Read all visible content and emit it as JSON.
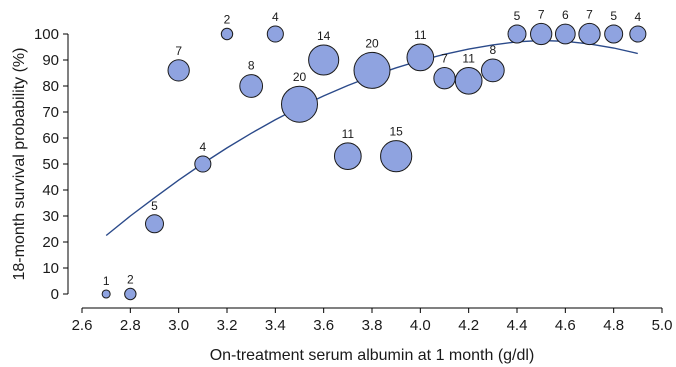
{
  "chart_data": {
    "type": "scatter",
    "title": "",
    "xlabel": "On-treatment serum albumin at 1 month (g/dl)",
    "ylabel": "18-month survival probability (%)",
    "xlim": [
      2.6,
      5.0
    ],
    "ylim": [
      0,
      100
    ],
    "xticks": [
      2.6,
      2.8,
      3.0,
      3.2,
      3.4,
      3.6,
      3.8,
      4.0,
      4.2,
      4.4,
      4.6,
      4.8,
      5.0
    ],
    "xtick_labels": [
      "2.6",
      "2.8",
      "3.0",
      "3.2",
      "3.4",
      "3.6",
      "3.8",
      "4.0",
      "4.2",
      "4.4",
      "4.6",
      "4.8",
      "5.0"
    ],
    "yticks": [
      0,
      10,
      20,
      30,
      40,
      50,
      60,
      70,
      80,
      90,
      100
    ],
    "ytick_labels": [
      "0",
      "10",
      "20",
      "30",
      "40",
      "50",
      "60",
      "70",
      "80",
      "90",
      "100"
    ],
    "grid": false,
    "bubble_color": "#8fa3e0",
    "bubble_edge": "#1a1a1a",
    "curve_color": "#2b4a8a",
    "points": [
      {
        "x": 2.7,
        "y": 0,
        "n": 1
      },
      {
        "x": 2.8,
        "y": 0,
        "n": 2
      },
      {
        "x": 2.9,
        "y": 27,
        "n": 5
      },
      {
        "x": 3.0,
        "y": 86,
        "n": 7
      },
      {
        "x": 3.1,
        "y": 50,
        "n": 4
      },
      {
        "x": 3.2,
        "y": 100,
        "n": 2
      },
      {
        "x": 3.3,
        "y": 80,
        "n": 8
      },
      {
        "x": 3.4,
        "y": 100,
        "n": 4
      },
      {
        "x": 3.5,
        "y": 73,
        "n": 20
      },
      {
        "x": 3.6,
        "y": 90,
        "n": 14
      },
      {
        "x": 3.7,
        "y": 53,
        "n": 11
      },
      {
        "x": 3.8,
        "y": 86,
        "n": 20
      },
      {
        "x": 3.9,
        "y": 53,
        "n": 15
      },
      {
        "x": 4.0,
        "y": 91,
        "n": 11
      },
      {
        "x": 4.1,
        "y": 83,
        "n": 7
      },
      {
        "x": 4.2,
        "y": 82,
        "n": 11
      },
      {
        "x": 4.3,
        "y": 86,
        "n": 8
      },
      {
        "x": 4.4,
        "y": 100,
        "n": 5
      },
      {
        "x": 4.5,
        "y": 100,
        "n": 7
      },
      {
        "x": 4.6,
        "y": 100,
        "n": 6
      },
      {
        "x": 4.7,
        "y": 100,
        "n": 7
      },
      {
        "x": 4.8,
        "y": 100,
        "n": 5
      },
      {
        "x": 4.9,
        "y": 100,
        "n": 4
      }
    ],
    "fit_curve": {
      "type": "quadratic",
      "x": [
        2.7,
        2.8,
        2.9,
        3.0,
        3.1,
        3.2,
        3.3,
        3.4,
        3.5,
        3.6,
        3.7,
        3.8,
        3.9,
        4.0,
        4.1,
        4.2,
        4.3,
        4.4,
        4.5,
        4.6,
        4.7,
        4.8,
        4.9
      ],
      "y": [
        22.5,
        30.0,
        37.0,
        43.8,
        50.2,
        56.2,
        61.8,
        67.0,
        71.8,
        76.2,
        80.2,
        83.8,
        87.0,
        89.8,
        92.2,
        94.2,
        95.8,
        97.0,
        97.5,
        97.2,
        96.2,
        94.6,
        92.5
      ]
    }
  }
}
